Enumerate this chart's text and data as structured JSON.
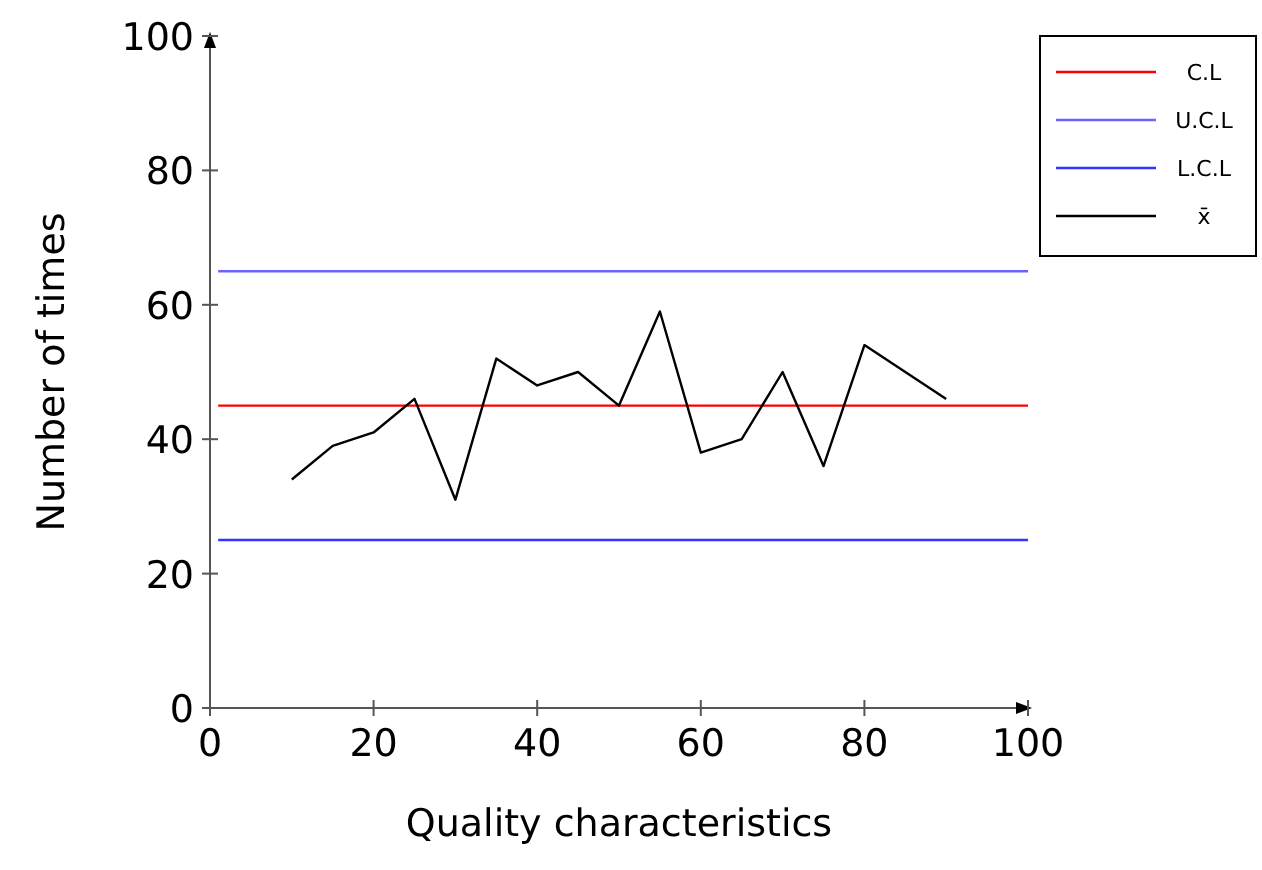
{
  "chart_data": {
    "type": "line",
    "xlabel": "Quality characteristics",
    "ylabel": "Number of times",
    "xlim": [
      0,
      100
    ],
    "ylim": [
      0,
      100
    ],
    "xticks": [
      0,
      20,
      40,
      60,
      80,
      100
    ],
    "yticks": [
      0,
      20,
      40,
      60,
      80,
      100
    ],
    "grid": false,
    "legend": "top right",
    "marker": "none",
    "line_style": "solid",
    "series": [
      {
        "name": "C.L",
        "color": "#ff0000",
        "x": [
          1,
          100
        ],
        "values": [
          45,
          45
        ]
      },
      {
        "name": "U.C.L",
        "color": "#6666ff",
        "x": [
          1,
          100
        ],
        "values": [
          65,
          65
        ]
      },
      {
        "name": "L.C.L",
        "color": "#3333ff",
        "x": [
          1,
          100
        ],
        "values": [
          25,
          25
        ]
      },
      {
        "name": "x̄",
        "color": "#000000",
        "x": [
          10,
          15,
          20,
          25,
          30,
          35,
          40,
          45,
          50,
          55,
          60,
          65,
          70,
          75,
          80,
          90
        ],
        "values": [
          34,
          39,
          41,
          46,
          31,
          52,
          48,
          50,
          45,
          59,
          38,
          40,
          50,
          36,
          54,
          46
        ]
      }
    ]
  }
}
